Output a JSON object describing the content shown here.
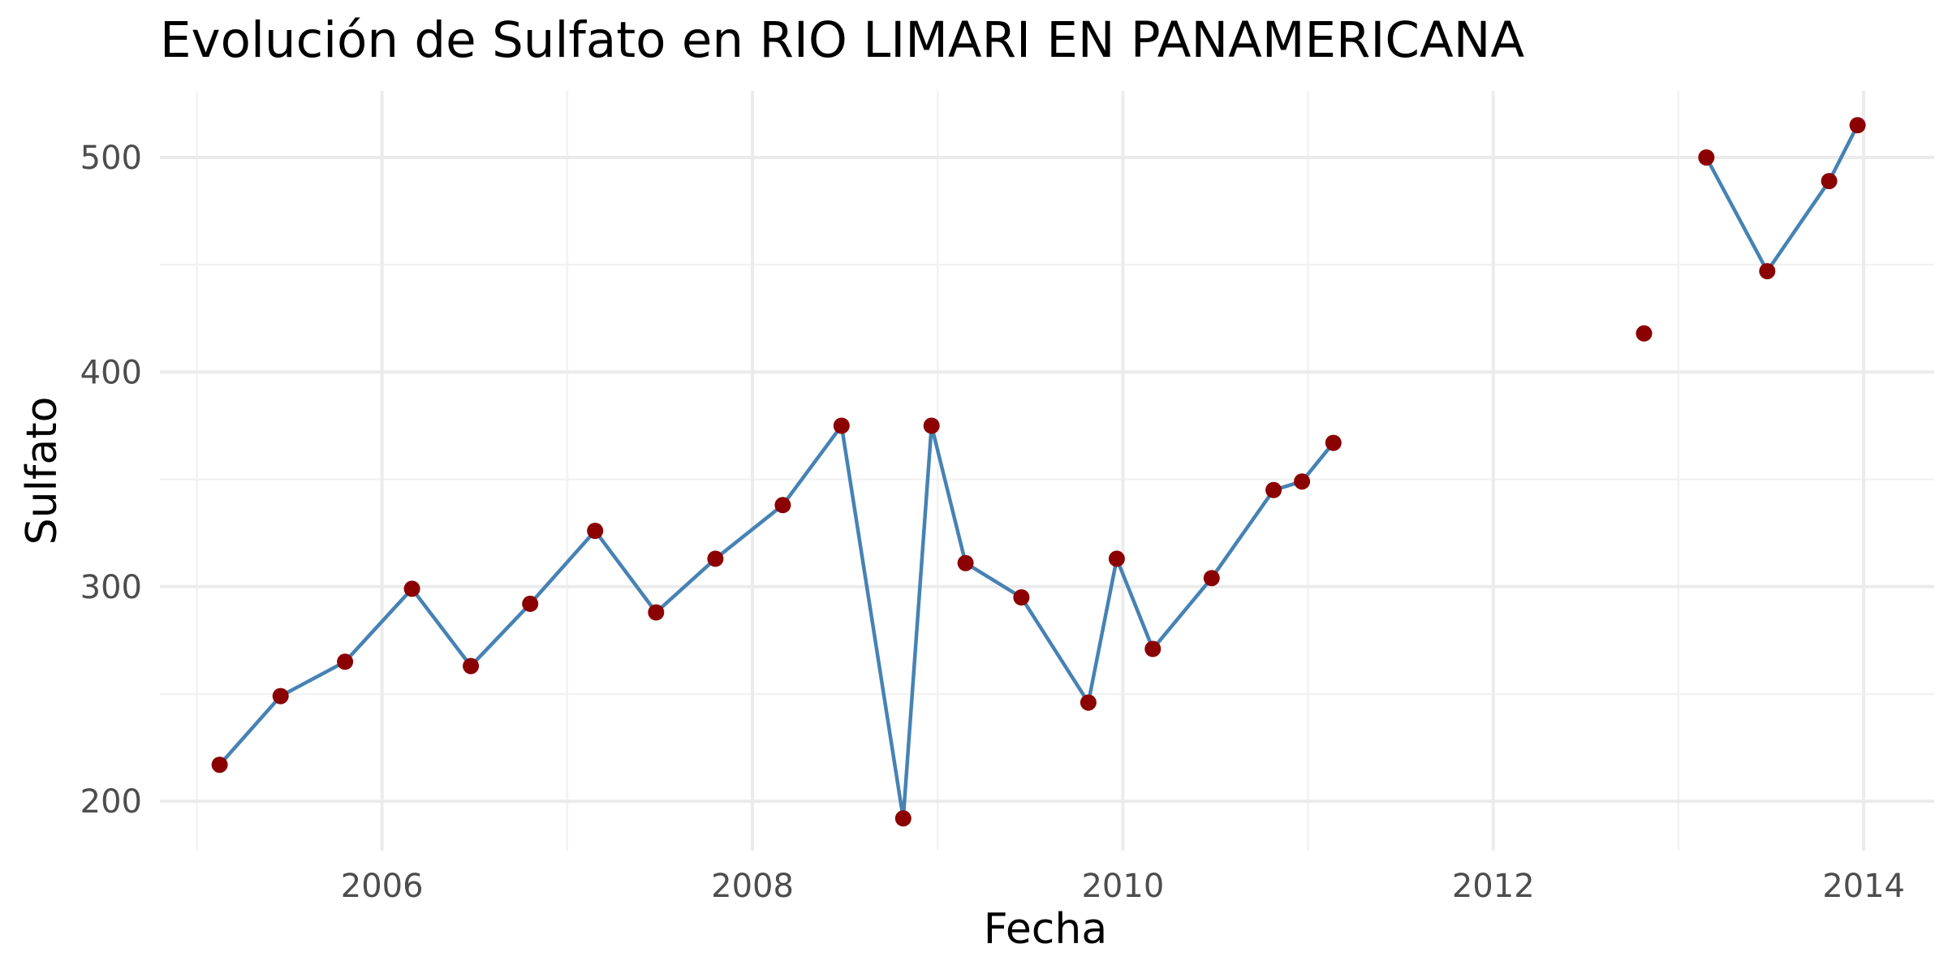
{
  "chart_data": {
    "type": "line",
    "title": "Evolución de Sulfato en RIO LIMARI EN PANAMERICANA",
    "xlabel": "Fecha",
    "ylabel": "Sulfato",
    "xlim": [
      "2004-10-20",
      "2014-05-20"
    ],
    "ylim": [
      177,
      531
    ],
    "x_ticks": [
      "2006",
      "2008",
      "2010",
      "2012",
      "2014"
    ],
    "y_ticks": [
      200,
      300,
      400,
      500
    ],
    "grid": true,
    "legend": "none",
    "colors": {
      "line": "#4682b4",
      "points": "#8b0000"
    },
    "series": [
      {
        "segments": [
          [
            {
              "x": "2005-02-15",
              "y": 217
            },
            {
              "x": "2005-06-15",
              "y": 249
            },
            {
              "x": "2005-10-20",
              "y": 265
            },
            {
              "x": "2006-03-01",
              "y": 299
            },
            {
              "x": "2006-06-25",
              "y": 263
            },
            {
              "x": "2006-10-20",
              "y": 292
            },
            {
              "x": "2007-02-25",
              "y": 326
            },
            {
              "x": "2007-06-25",
              "y": 288
            },
            {
              "x": "2007-10-20",
              "y": 313
            },
            {
              "x": "2008-03-01",
              "y": 338
            },
            {
              "x": "2008-06-25",
              "y": 375
            },
            {
              "x": "2008-10-25",
              "y": 192
            },
            {
              "x": "2008-12-20",
              "y": 375
            },
            {
              "x": "2009-02-25",
              "y": 311
            },
            {
              "x": "2009-06-15",
              "y": 295
            },
            {
              "x": "2009-10-25",
              "y": 246
            },
            {
              "x": "2009-12-20",
              "y": 313
            },
            {
              "x": "2010-03-01",
              "y": 271
            },
            {
              "x": "2010-06-25",
              "y": 304
            },
            {
              "x": "2010-10-25",
              "y": 345
            },
            {
              "x": "2010-12-20",
              "y": 349
            },
            {
              "x": "2011-02-20",
              "y": 367
            }
          ],
          [
            {
              "x": "2012-10-25",
              "y": 418
            }
          ],
          [
            {
              "x": "2013-02-25",
              "y": 500
            },
            {
              "x": "2013-06-25",
              "y": 447
            },
            {
              "x": "2013-10-25",
              "y": 489
            },
            {
              "x": "2013-12-20",
              "y": 515
            }
          ]
        ]
      }
    ]
  }
}
